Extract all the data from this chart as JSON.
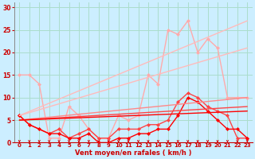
{
  "bg_color": "#cceeff",
  "grid_color": "#aaddcc",
  "xlabel": "Vent moyen/en rafales ( km/h )",
  "xlabel_color": "#cc0000",
  "tick_color": "#cc0000",
  "xlim": [
    -0.5,
    23.5
  ],
  "ylim": [
    0,
    31
  ],
  "yticks": [
    0,
    5,
    10,
    15,
    20,
    25,
    30
  ],
  "xticks": [
    0,
    1,
    2,
    3,
    4,
    5,
    6,
    7,
    8,
    9,
    10,
    11,
    12,
    13,
    14,
    15,
    16,
    17,
    18,
    19,
    20,
    21,
    22,
    23
  ],
  "lines": [
    {
      "x": [
        0,
        1,
        2,
        3,
        4,
        5,
        6,
        7,
        8,
        9,
        10,
        11,
        12,
        13,
        14,
        15,
        16,
        17,
        18,
        19,
        20,
        21,
        22,
        23
      ],
      "y": [
        15,
        15,
        13,
        1,
        1,
        8,
        6,
        3,
        1,
        1,
        6,
        5,
        6,
        15,
        13,
        25,
        24,
        27,
        20,
        23,
        21,
        10,
        10,
        10
      ],
      "color": "#ffaaaa",
      "lw": 1.0,
      "marker": "D",
      "ms": 2.0
    },
    {
      "x": [
        0,
        1,
        2,
        3,
        4,
        5,
        6,
        7,
        8,
        9,
        10,
        11,
        12,
        13,
        14,
        15,
        16,
        17,
        18,
        19,
        20,
        21,
        22,
        23
      ],
      "y": [
        6,
        4,
        3,
        2,
        3,
        1,
        2,
        3,
        1,
        1,
        3,
        3,
        3,
        4,
        4,
        5,
        9,
        11,
        10,
        8,
        7,
        6,
        1,
        1
      ],
      "color": "#ff4444",
      "lw": 1.0,
      "marker": "D",
      "ms": 2.0
    },
    {
      "x": [
        0,
        1,
        2,
        3,
        4,
        5,
        6,
        7,
        8,
        9,
        10,
        11,
        12,
        13,
        14,
        15,
        16,
        17,
        18,
        19,
        20,
        21,
        22,
        23
      ],
      "y": [
        6,
        4,
        3,
        2,
        2,
        1,
        1,
        2,
        0,
        0,
        1,
        1,
        2,
        2,
        3,
        3,
        6,
        10,
        9,
        7,
        5,
        3,
        3,
        1
      ],
      "color": "#ff0000",
      "lw": 1.0,
      "marker": "D",
      "ms": 2.0
    },
    {
      "x": [
        0,
        23
      ],
      "y": [
        6,
        27
      ],
      "color": "#ffbbbb",
      "lw": 1.0,
      "marker": null
    },
    {
      "x": [
        0,
        23
      ],
      "y": [
        6,
        21
      ],
      "color": "#ffbbbb",
      "lw": 1.0,
      "marker": null
    },
    {
      "x": [
        0,
        23
      ],
      "y": [
        5,
        10
      ],
      "color": "#ff8888",
      "lw": 1.0,
      "marker": null
    },
    {
      "x": [
        0,
        23
      ],
      "y": [
        5,
        8
      ],
      "color": "#ff4444",
      "lw": 1.0,
      "marker": null
    },
    {
      "x": [
        0,
        23
      ],
      "y": [
        5,
        7
      ],
      "color": "#ff0000",
      "lw": 1.0,
      "marker": null
    }
  ]
}
